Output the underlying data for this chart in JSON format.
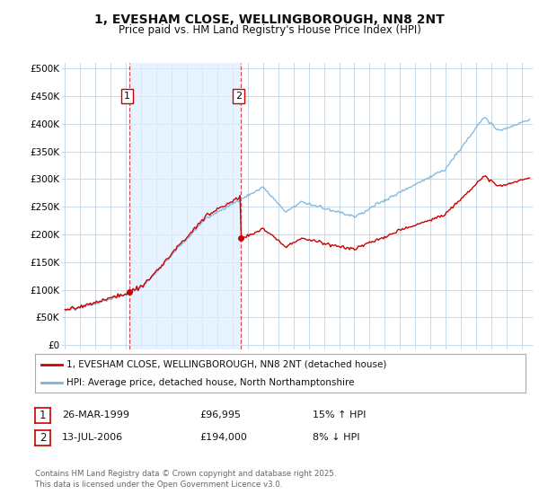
{
  "title": "1, EVESHAM CLOSE, WELLINGBOROUGH, NN8 2NT",
  "subtitle": "Price paid vs. HM Land Registry's House Price Index (HPI)",
  "yticks": [
    0,
    50000,
    100000,
    150000,
    200000,
    250000,
    300000,
    350000,
    400000,
    450000,
    500000
  ],
  "ytick_labels": [
    "£0",
    "£50K",
    "£100K",
    "£150K",
    "£200K",
    "£250K",
    "£300K",
    "£350K",
    "£400K",
    "£450K",
    "£500K"
  ],
  "ylim": [
    -8000,
    510000
  ],
  "hpi_color": "#7ab4d8",
  "price_color": "#cc0000",
  "marker_color": "#cc0000",
  "sale1_date": 1999.23,
  "sale1_price": 96995,
  "sale1_label": "1",
  "sale2_date": 2006.54,
  "sale2_price": 194000,
  "sale2_label": "2",
  "legend_line1": "1, EVESHAM CLOSE, WELLINGBOROUGH, NN8 2NT (detached house)",
  "legend_line2": "HPI: Average price, detached house, North Northamptonshire",
  "table_row1": [
    "1",
    "26-MAR-1999",
    "£96,995",
    "15% ↑ HPI"
  ],
  "table_row2": [
    "2",
    "13-JUL-2006",
    "£194,000",
    "8% ↓ HPI"
  ],
  "footer": "Contains HM Land Registry data © Crown copyright and database right 2025.\nThis data is licensed under the Open Government Licence v3.0.",
  "bg_color": "#ffffff",
  "plot_bg_color": "#ffffff",
  "grid_color": "#c8d8e8",
  "shade_color": "#ddeeff",
  "vline_color": "#cc0000",
  "vline_alpha": 0.7,
  "xlim_left": 1994.8,
  "xlim_right": 2025.7
}
